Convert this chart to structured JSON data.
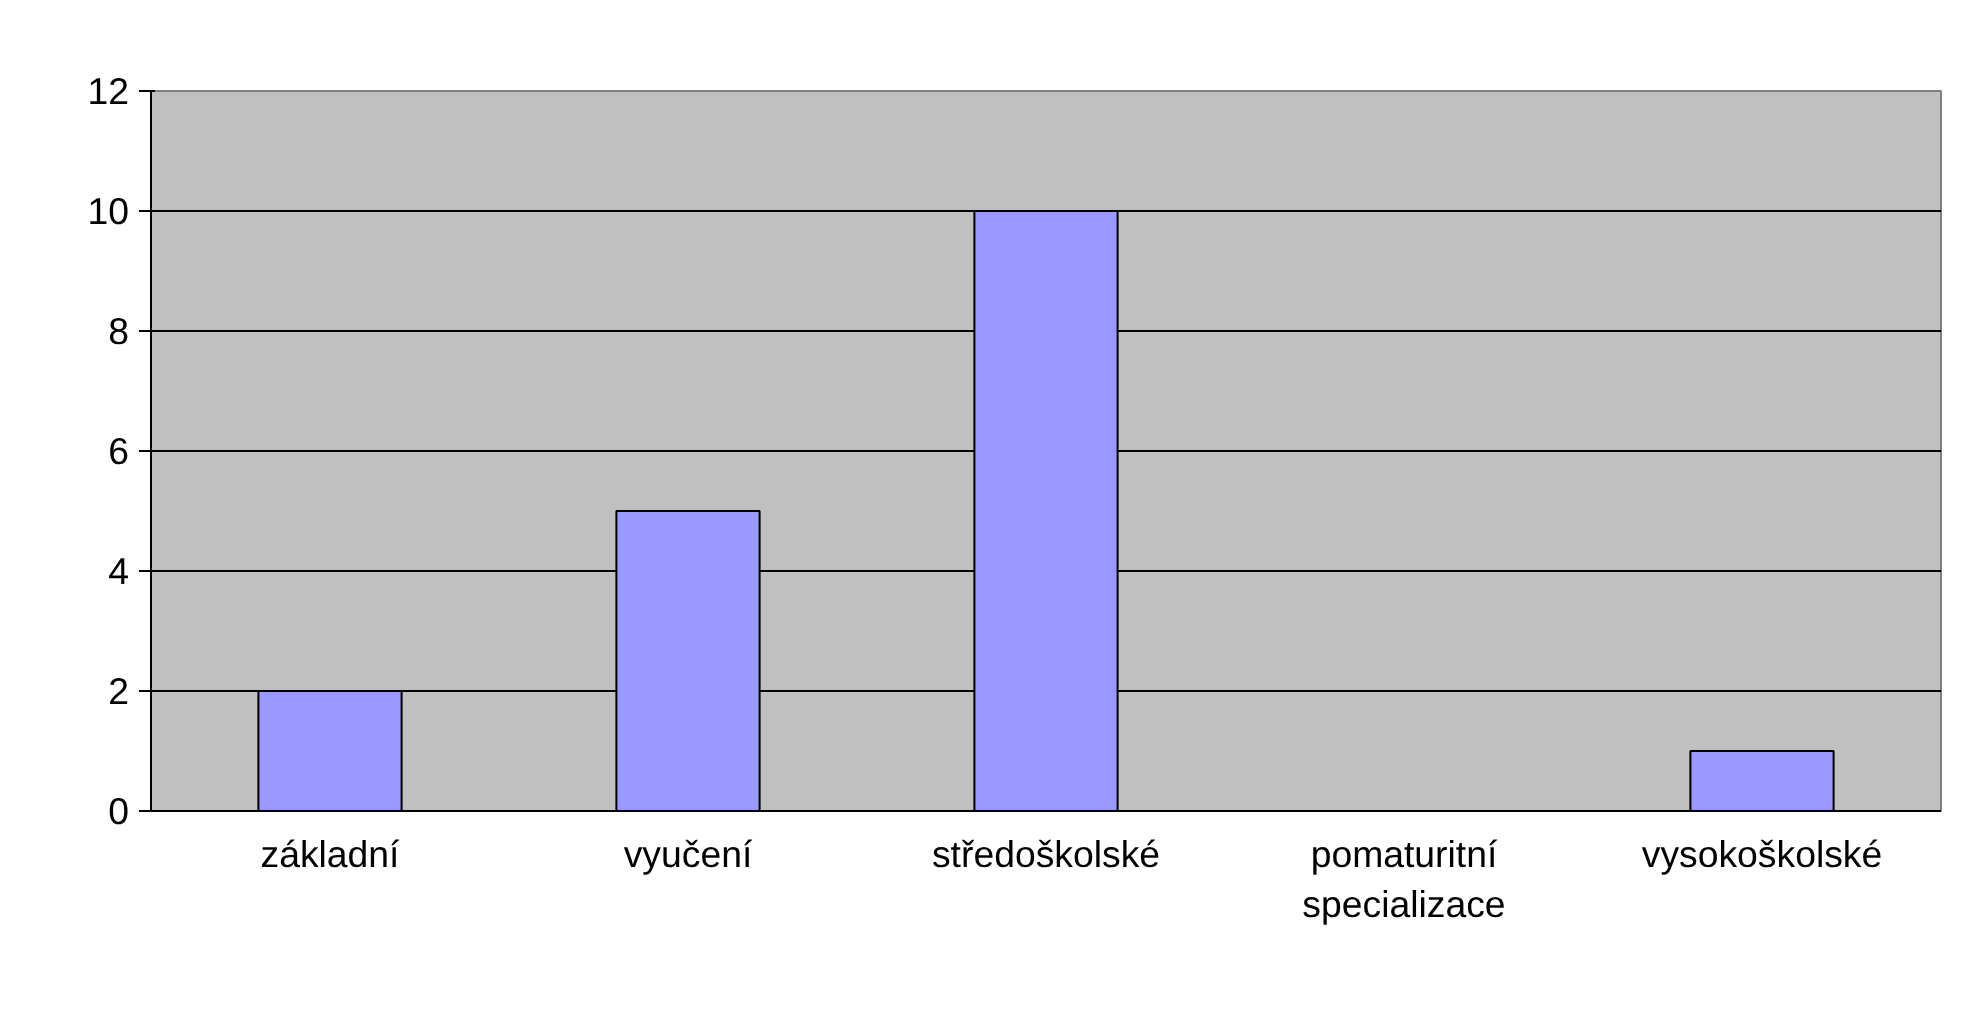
{
  "chart_data": {
    "type": "bar",
    "categories": [
      "základní",
      "vyučení",
      "středoškolské",
      "pomaturitní specializace",
      "vysokoškolské"
    ],
    "values": [
      2,
      5,
      10,
      0,
      1
    ],
    "color": "#9999ff",
    "ylim": [
      0,
      12
    ],
    "yticks": [
      0,
      2,
      4,
      6,
      8,
      10,
      12
    ],
    "grid": "y"
  }
}
